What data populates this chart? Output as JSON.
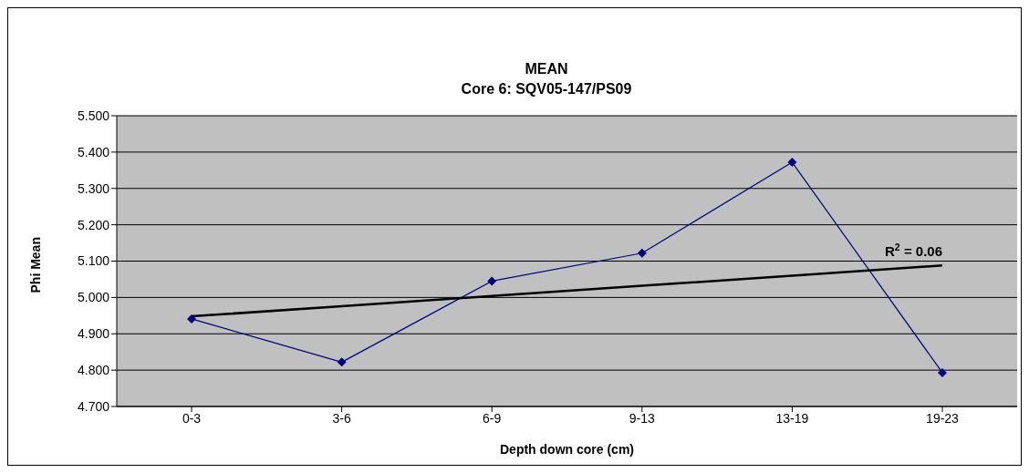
{
  "chart_data": {
    "type": "line",
    "title": "MEAN",
    "subtitle": "Core 6: SQV05-147/PS09",
    "xlabel": "Depth down core (cm)",
    "ylabel": "Phi Mean",
    "categories": [
      "0-3",
      "3-6",
      "6-9",
      "9-13",
      "13-19",
      "19-23"
    ],
    "series": [
      {
        "color": "#000080",
        "values": [
          4.941,
          4.822,
          5.045,
          5.122,
          5.372,
          4.793
        ],
        "marker": "diamond"
      },
      {
        "type": "line",
        "color": "#000000",
        "values": [
          4.948,
          4.976,
          5.004,
          5.032,
          5.06,
          5.088
        ],
        "marker": "none"
      }
    ],
    "annotations": [
      "R$^{2}$ = 0.06"
    ],
    "ylim": [
      4.7,
      5.5
    ],
    "yticks": [
      {
        "value": 4.7,
        "label": "4.700"
      },
      {
        "value": 4.8,
        "label": "4.800"
      },
      {
        "value": 4.9,
        "label": "4.900"
      },
      {
        "value": 5.0,
        "label": "5.000"
      },
      {
        "value": 5.1,
        "label": "5.100"
      },
      {
        "value": 5.2,
        "label": "5.200"
      },
      {
        "value": 5.3,
        "label": "5.300"
      },
      {
        "value": 5.4,
        "label": "5.400"
      },
      {
        "value": 5.5,
        "label": "5.500"
      }
    ],
    "grid": "y",
    "legend": false
  }
}
